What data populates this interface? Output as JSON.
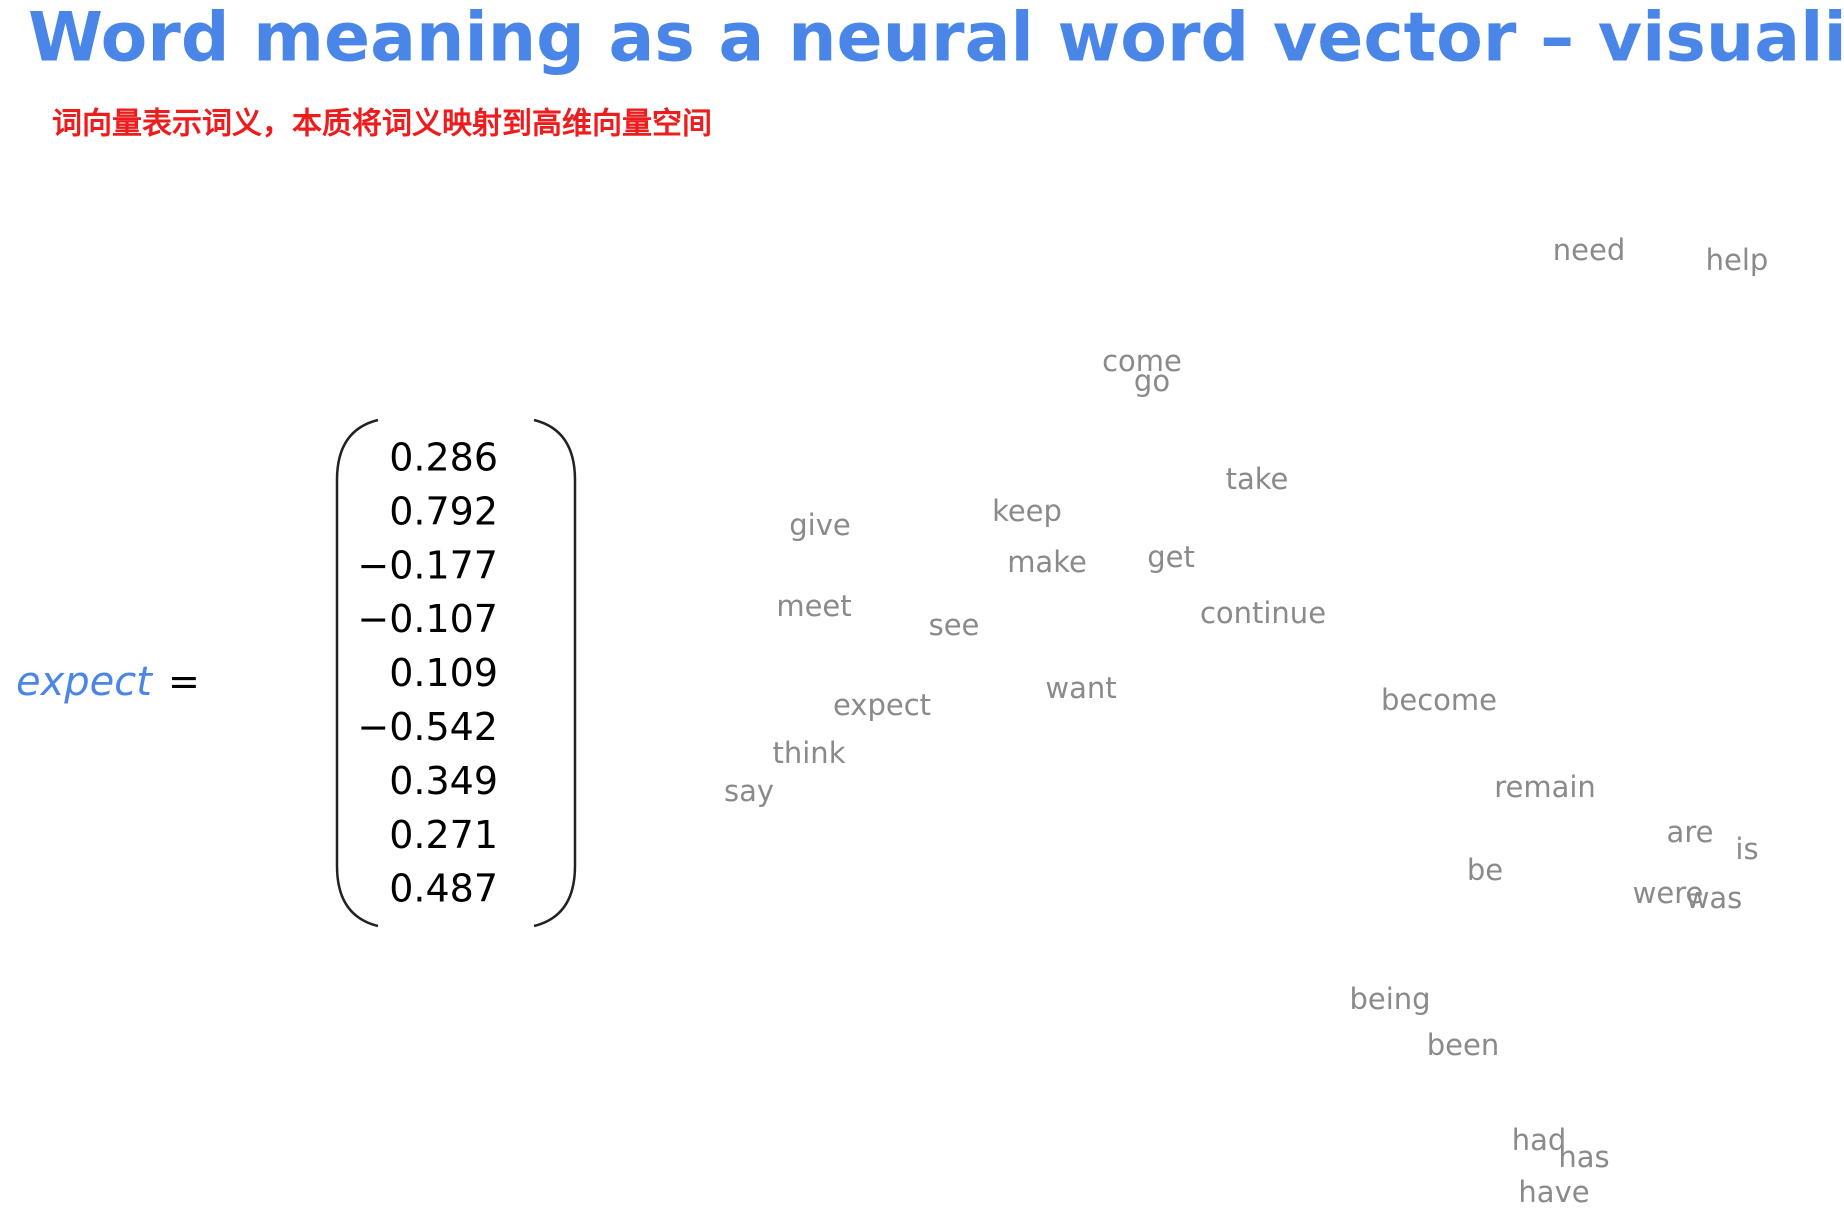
{
  "header": {
    "title": "Word meaning as a neural word vector – visualization",
    "subtitle": "词向量表示词义，本质将词义映射到高维向量空间"
  },
  "equation": {
    "word": "expect",
    "equals": "=",
    "vector": [
      "0.286",
      "0.792",
      "−0.177",
      "−0.107",
      "0.109",
      "−0.542",
      "0.349",
      "0.271",
      "0.487"
    ]
  },
  "cloud": {
    "words": [
      "need",
      "help",
      "come",
      "go",
      "take",
      "keep",
      "give",
      "make",
      "get",
      "meet",
      "see",
      "continue",
      "want",
      "become",
      "expect",
      "think",
      "say",
      "remain",
      "are",
      "is",
      "be",
      "were",
      "was",
      "being",
      "been",
      "had",
      "has",
      "have"
    ]
  }
}
